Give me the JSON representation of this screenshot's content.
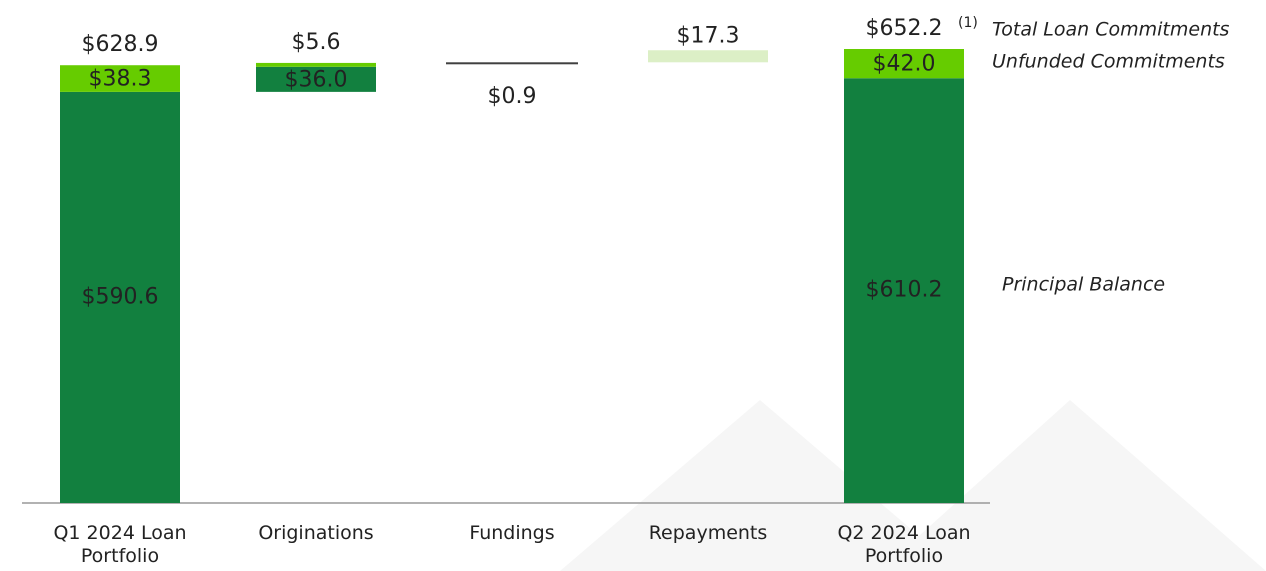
{
  "chart_data": {
    "type": "waterfall",
    "categories": [
      "Q1 2024 Loan Portfolio",
      "Originations",
      "Fundings",
      "Repayments",
      "Q2 2024 Loan Portfolio"
    ],
    "series": [
      {
        "name": "Principal Balance",
        "color": "#12803f",
        "values": [
          590.6,
          36.0,
          null,
          null,
          610.2
        ],
        "value_labels": [
          "$590.6",
          "$36.0",
          null,
          null,
          "$610.2"
        ]
      },
      {
        "name": "Unfunded Commitments",
        "color": "#66cc00",
        "values": [
          38.3,
          5.6,
          null,
          null,
          42.0
        ],
        "value_labels": [
          "$38.3",
          "$5.6",
          null,
          null,
          "$42.0"
        ]
      },
      {
        "name": "Total Loan Commitments",
        "values": [
          628.9,
          null,
          null,
          null,
          652.2
        ],
        "value_labels": [
          "$628.9",
          null,
          null,
          null,
          "$652.2"
        ]
      }
    ],
    "changes": {
      "values": [
        null,
        null,
        0.9,
        17.3,
        null
      ],
      "value_labels": [
        null,
        null,
        "$0.9",
        "$17.3",
        null
      ],
      "colors": [
        null,
        null,
        "#404040",
        "#dcefc6",
        null
      ]
    },
    "footnote": "(1)"
  }
}
